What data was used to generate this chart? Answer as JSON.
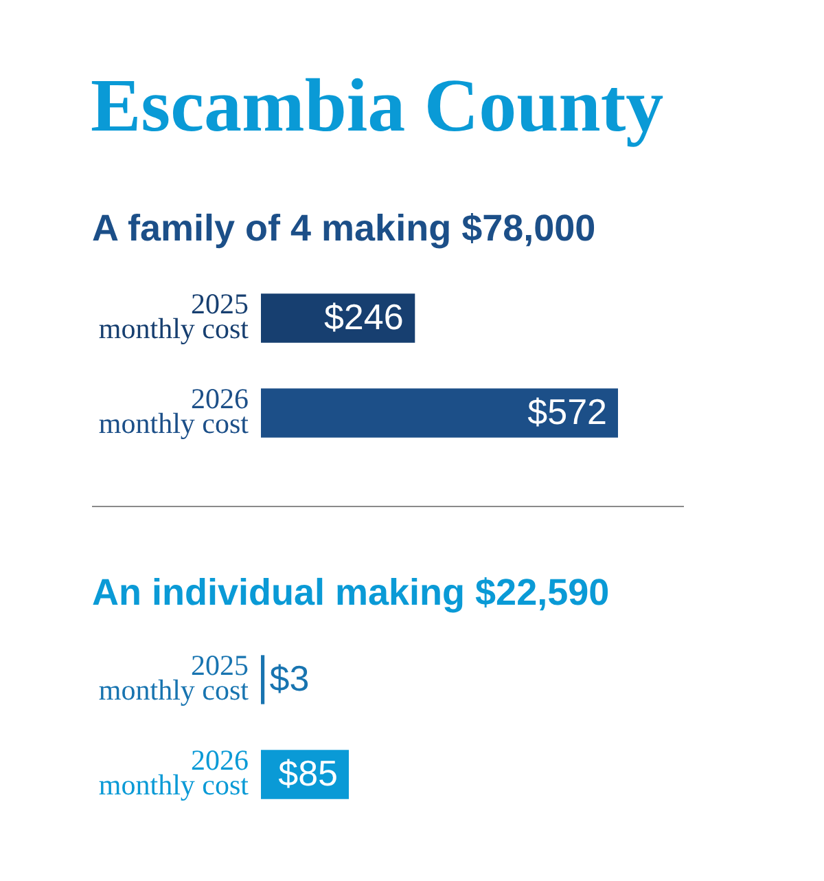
{
  "chart_data": [
    {
      "type": "bar",
      "title": "Escambia County",
      "subtitle": "A family of 4 making $78,000",
      "orientation": "horizontal",
      "categories": [
        "2025 monthly cost",
        "2026 monthly cost"
      ],
      "values": [
        246,
        572
      ],
      "colors": [
        "#173f70",
        "#1c4f88"
      ],
      "value_labels": [
        "$246",
        "$572"
      ],
      "tick_labels": "y",
      "grid": false,
      "legend": false
    },
    {
      "type": "bar",
      "title": "An individual making $22,590",
      "orientation": "horizontal",
      "categories": [
        "2025 monthly cost",
        "2026 monthly cost"
      ],
      "values": [
        3,
        85
      ],
      "colors": [
        "#1874b0",
        "#0a9ad6"
      ],
      "value_labels": [
        "$3",
        "$85"
      ],
      "tick_labels": "y",
      "grid": false,
      "legend": false
    }
  ]
}
